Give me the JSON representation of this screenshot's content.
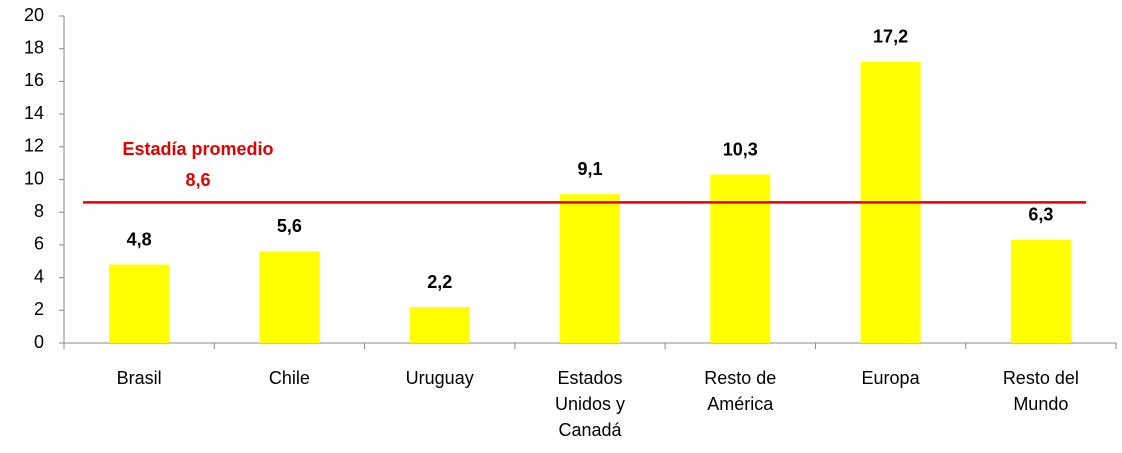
{
  "chart_data": {
    "type": "bar",
    "categories": [
      "Brasil",
      "Chile",
      "Uruguay",
      "Estados Unidos y Canadá",
      "Resto de América",
      "Europa",
      "Resto del Mundo"
    ],
    "values": [
      4.8,
      5.6,
      2.2,
      9.1,
      10.3,
      17.2,
      6.3
    ],
    "value_labels": [
      "4,8",
      "5,6",
      "2,2",
      "9,1",
      "10,3",
      "17,2",
      "6,3"
    ],
    "color": "#ffff00",
    "ylim": [
      0,
      20
    ],
    "yticks": [
      0,
      2,
      4,
      6,
      8,
      10,
      12,
      14,
      16,
      18,
      20
    ],
    "grid": false,
    "reference_line": {
      "label": "Estadía promedio",
      "value": 8.6,
      "value_label": "8,6",
      "color": "#e00000"
    }
  }
}
